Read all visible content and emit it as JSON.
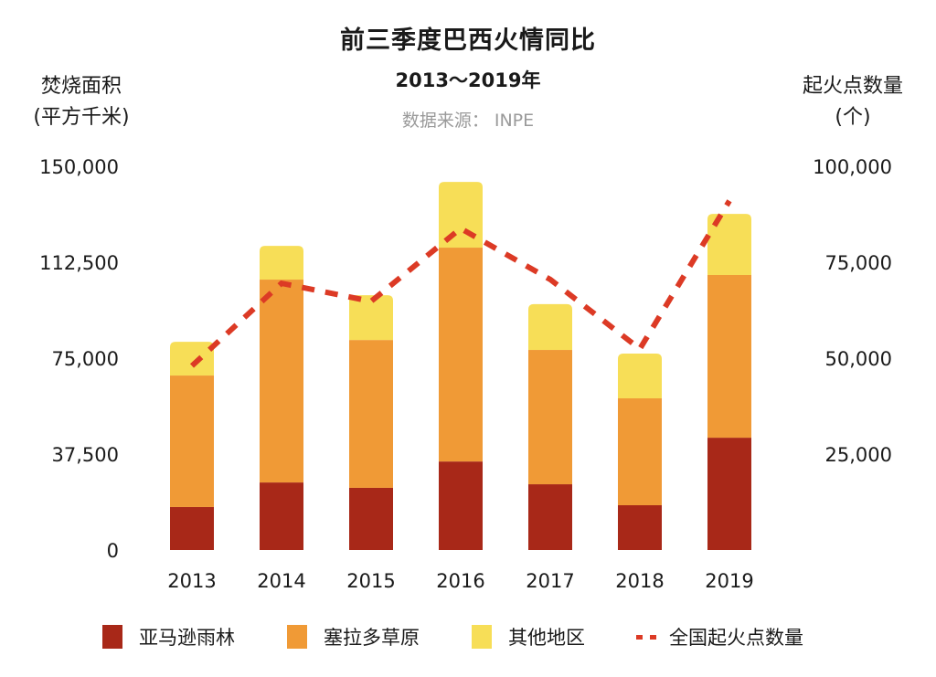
{
  "chart_data": {
    "type": "bar",
    "stacked": true,
    "title": "前三季度巴西火情同比",
    "subtitle": "2013～2019年",
    "source": "数据来源：  INPE",
    "ylabel_left": [
      "焚烧面积",
      "(平方千米)"
    ],
    "ylabel_right": [
      "起火点数量",
      "(个)"
    ],
    "categories": [
      "2013",
      "2014",
      "2015",
      "2016",
      "2017",
      "2018",
      "2019"
    ],
    "ylim_left": [
      0,
      150000
    ],
    "ylim_right": [
      0,
      100000
    ],
    "yticks_left": [
      "0",
      "37,500",
      "75,000",
      "112,500",
      "150,000"
    ],
    "yticks_left_values": [
      0,
      37500,
      75000,
      112500,
      150000
    ],
    "yticks_right": [
      "25,000",
      "50,000",
      "75,000",
      "100,000"
    ],
    "yticks_right_values": [
      25000,
      50000,
      75000,
      100000
    ],
    "grid": false,
    "legend_position": "bottom",
    "series": [
      {
        "name": "亚马逊雨林",
        "type": "bar",
        "axis": "left",
        "color": "#a82818",
        "values": [
          16800,
          26400,
          24300,
          34600,
          25700,
          17500,
          43900
        ]
      },
      {
        "name": "塞拉多草原",
        "type": "bar",
        "axis": "left",
        "color": "#f09a36",
        "values": [
          51400,
          79300,
          57800,
          83600,
          52500,
          41800,
          63600
        ]
      },
      {
        "name": "其他地区",
        "type": "bar",
        "axis": "left",
        "color": "#f7de57",
        "values": [
          13200,
          13200,
          17500,
          25700,
          17900,
          17500,
          23900
        ]
      },
      {
        "name": "全国起火点数量",
        "type": "line",
        "axis": "right",
        "style": "dashed",
        "color": "#dc3a25",
        "values": [
          48000,
          69500,
          64800,
          83800,
          70500,
          52400,
          91000
        ]
      }
    ]
  }
}
